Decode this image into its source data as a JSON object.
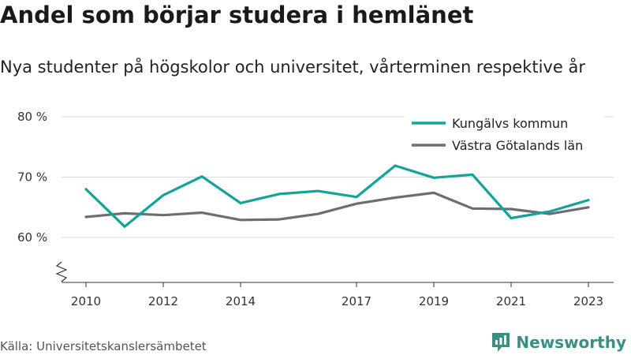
{
  "title": "Andel som börjar studera i hemlänet",
  "subtitle": "Nya studenter på högskolor och universitet, vårterminen respektive år",
  "source": "Källa: Universitetskanslersämbetet",
  "brand": {
    "name": "Newsworthy",
    "icon": "newsworthy-logo-icon"
  },
  "chart_data": {
    "type": "line",
    "x": [
      2010,
      2011,
      2012,
      2013,
      2014,
      2015,
      2016,
      2017,
      2018,
      2019,
      2020,
      2021,
      2022,
      2023
    ],
    "x_ticks": [
      "2010",
      "2012",
      "2014",
      "2017",
      "2019",
      "2021",
      "2023"
    ],
    "y_ticks": [
      "60 %",
      "70 %",
      "80 %"
    ],
    "y_tick_values": [
      60,
      70,
      80
    ],
    "ylim": [
      53,
      80
    ],
    "y_axis_break": true,
    "grid": "horizontal",
    "legend_position": "top-right",
    "series": [
      {
        "name": "Kungälvs kommun",
        "color": "#12a39a",
        "values": [
          68.0,
          61.8,
          67.0,
          70.1,
          65.7,
          67.2,
          67.7,
          66.7,
          71.9,
          69.9,
          70.4,
          63.2,
          64.3,
          66.2
        ]
      },
      {
        "name": "Västra Götalands län",
        "color": "#6e6d72",
        "values": [
          63.4,
          64.0,
          63.7,
          64.1,
          62.9,
          63.0,
          63.9,
          65.6,
          66.6,
          67.4,
          64.8,
          64.7,
          63.9,
          65.0
        ]
      }
    ]
  }
}
